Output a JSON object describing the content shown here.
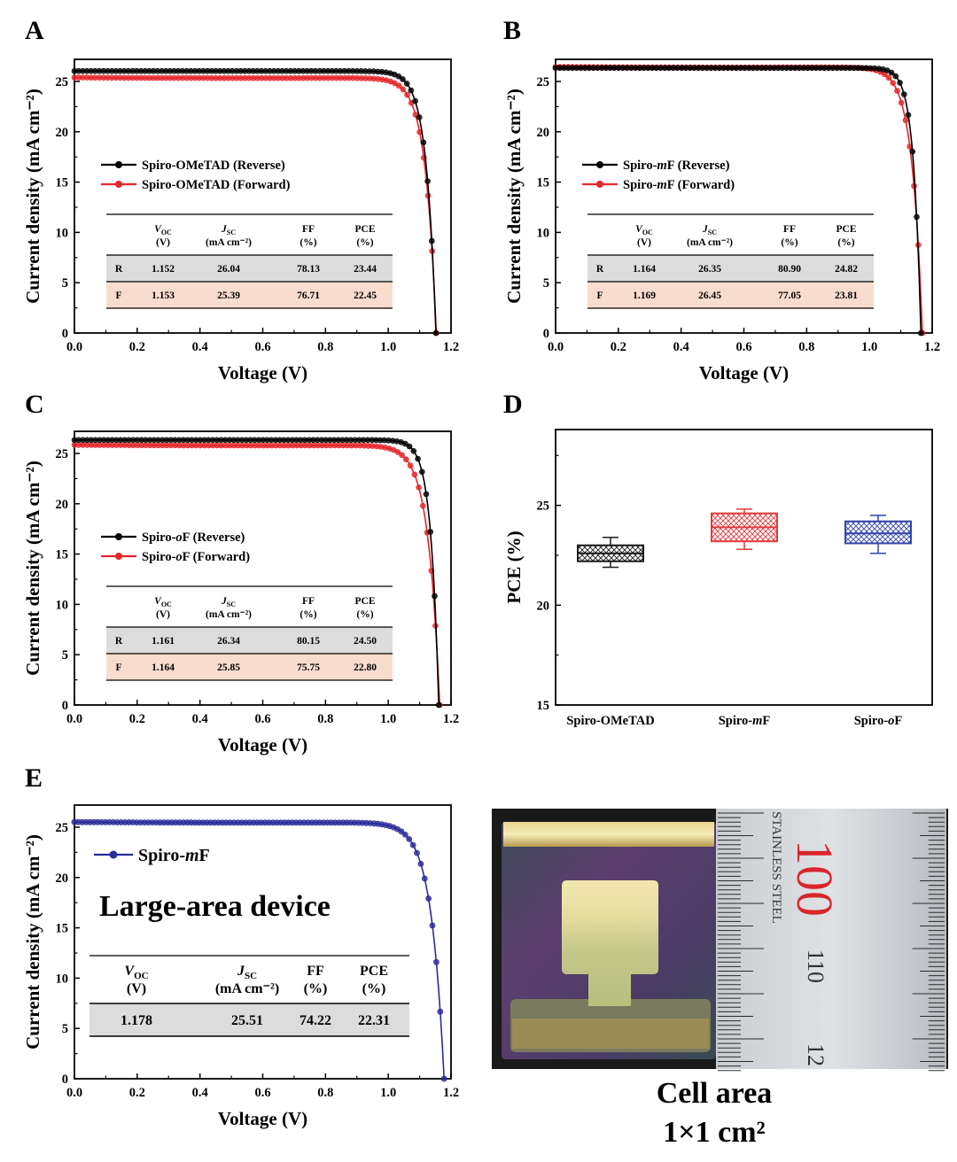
{
  "panel_letters": [
    "A",
    "B",
    "C",
    "D",
    "E"
  ],
  "table_header": {
    "voc": "V",
    "voc_sub": "OC",
    "voc_unit": "(V)",
    "jsc": "J",
    "jsc_sub": "SC",
    "jsc_unit": "(mA cm⁻²)",
    "ff": "FF",
    "ff_unit": "(%)",
    "pce": "PCE",
    "pce_unit": "(%)"
  },
  "colors": {
    "reverse": "#000000",
    "forward": "#e5262b",
    "spiro_ometad": "#1a1a1a",
    "spiro_mf": "#e23b3b",
    "spiro_of": "#3344aa",
    "large_area": "#2b2b9a",
    "row_gray": "#dcdcdc",
    "row_pink": "#f8dccd"
  },
  "chart_data": [
    {
      "id": "A",
      "type": "line",
      "xlabel": "Voltage (V)",
      "ylabel": "Current density (mA cm⁻²)",
      "xlim": [
        0,
        1.2
      ],
      "ylim": [
        0,
        27.2
      ],
      "xticks": [
        "0.0",
        "0.2",
        "0.4",
        "0.6",
        "0.8",
        "1.0",
        "1.2"
      ],
      "yticks": [
        "0",
        "5",
        "10",
        "15",
        "20",
        "25"
      ],
      "series": [
        {
          "name": "Spiro-OMeTAD (Reverse)",
          "color": "#000000",
          "voc": 1.152,
          "jsc": 26.04,
          "ff": 78.13,
          "pce": 23.44
        },
        {
          "name": "Spiro-OMeTAD (Forward)",
          "color": "#e5262b",
          "voc": 1.153,
          "jsc": 25.39,
          "ff": 76.71,
          "pce": 22.45
        }
      ],
      "table": [
        {
          "label": "R",
          "voc": "1.152",
          "jsc": "26.04",
          "ff": "78.13",
          "pce": "23.44"
        },
        {
          "label": "F",
          "voc": "1.153",
          "jsc": "25.39",
          "ff": "76.71",
          "pce": "22.45"
        }
      ]
    },
    {
      "id": "B",
      "type": "line",
      "xlabel": "Voltage (V)",
      "ylabel": "Current density (mA cm⁻²)",
      "xlim": [
        0,
        1.2
      ],
      "ylim": [
        0,
        27.2
      ],
      "xticks": [
        "0.0",
        "0.2",
        "0.4",
        "0.6",
        "0.8",
        "1.0",
        "1.2"
      ],
      "yticks": [
        "0",
        "5",
        "10",
        "15",
        "20",
        "25"
      ],
      "series": [
        {
          "name": "Spiro-mF (Reverse)",
          "italic": "m",
          "color": "#000000",
          "voc": 1.164,
          "jsc": 26.35,
          "ff": 80.9,
          "pce": 24.82
        },
        {
          "name": "Spiro-mF (Forward)",
          "italic": "m",
          "color": "#e5262b",
          "voc": 1.169,
          "jsc": 26.45,
          "ff": 77.05,
          "pce": 23.81
        }
      ],
      "table": [
        {
          "label": "R",
          "voc": "1.164",
          "jsc": "26.35",
          "ff": "80.90",
          "pce": "24.82"
        },
        {
          "label": "F",
          "voc": "1.169",
          "jsc": "26.45",
          "ff": "77.05",
          "pce": "23.81"
        }
      ]
    },
    {
      "id": "C",
      "type": "line",
      "xlabel": "Voltage (V)",
      "ylabel": "Current density (mA cm⁻²)",
      "xlim": [
        0,
        1.2
      ],
      "ylim": [
        0,
        27.2
      ],
      "xticks": [
        "0.0",
        "0.2",
        "0.4",
        "0.6",
        "0.8",
        "1.0",
        "1.2"
      ],
      "yticks": [
        "0",
        "5",
        "10",
        "15",
        "20",
        "25"
      ],
      "series": [
        {
          "name": "Spiro-oF (Reverse)",
          "italic": "o",
          "color": "#000000",
          "voc": 1.161,
          "jsc": 26.34,
          "ff": 80.15,
          "pce": 24.5
        },
        {
          "name": "Spiro-oF (Forward)",
          "italic": "o",
          "color": "#e5262b",
          "voc": 1.164,
          "jsc": 25.85,
          "ff": 75.75,
          "pce": 22.8
        }
      ],
      "table": [
        {
          "label": "R",
          "voc": "1.161",
          "jsc": "26.34",
          "ff": "80.15",
          "pce": "24.50"
        },
        {
          "label": "F",
          "voc": "1.164",
          "jsc": "25.85",
          "ff": "75.75",
          "pce": "22.80"
        }
      ]
    },
    {
      "id": "D",
      "type": "box",
      "ylabel": "PCE (%)",
      "ylim": [
        15,
        28.8
      ],
      "yticks": [
        "15",
        "20",
        "25"
      ],
      "categories": [
        "Spiro-OMeTAD",
        "Spiro-mF",
        "Spiro-oF"
      ],
      "category_italic": [
        "",
        "m",
        "o"
      ],
      "boxes": [
        {
          "name": "Spiro-OMeTAD",
          "color": "#1a1a1a",
          "min": 21.9,
          "q1": 22.2,
          "median": 22.6,
          "q3": 23.0,
          "max": 23.4
        },
        {
          "name": "Spiro-mF",
          "color": "#e23b3b",
          "min": 22.8,
          "q1": 23.2,
          "median": 23.9,
          "q3": 24.6,
          "max": 24.82
        },
        {
          "name": "Spiro-oF",
          "color": "#3344aa",
          "min": 22.6,
          "q1": 23.1,
          "median": 23.6,
          "q3": 24.2,
          "max": 24.5
        }
      ]
    },
    {
      "id": "E",
      "type": "line",
      "xlabel": "Voltage (V)",
      "ylabel": "Current density (mA cm⁻²)",
      "xlim": [
        0,
        1.2
      ],
      "ylim": [
        0,
        27.2
      ],
      "xticks": [
        "0.0",
        "0.2",
        "0.4",
        "0.6",
        "0.8",
        "1.0",
        "1.2"
      ],
      "yticks": [
        "0",
        "5",
        "10",
        "15",
        "20",
        "25"
      ],
      "series": [
        {
          "name": "Spiro-mF",
          "italic": "m",
          "color": "#2b2b9a",
          "voc": 1.178,
          "jsc": 25.51,
          "ff": 74.22,
          "pce": 22.31
        }
      ],
      "title_annotation": "Large-area device",
      "table": [
        {
          "label": "",
          "voc": "1.178",
          "jsc": "25.51",
          "ff": "74.22",
          "pce": "22.31"
        }
      ]
    }
  ],
  "photo": {
    "ruler_numbers": [
      "100",
      "110",
      "12"
    ],
    "ruler_text": "STAINLESS STEEL",
    "caption_line1": "Cell area",
    "caption_line2": "1×1 cm²"
  }
}
